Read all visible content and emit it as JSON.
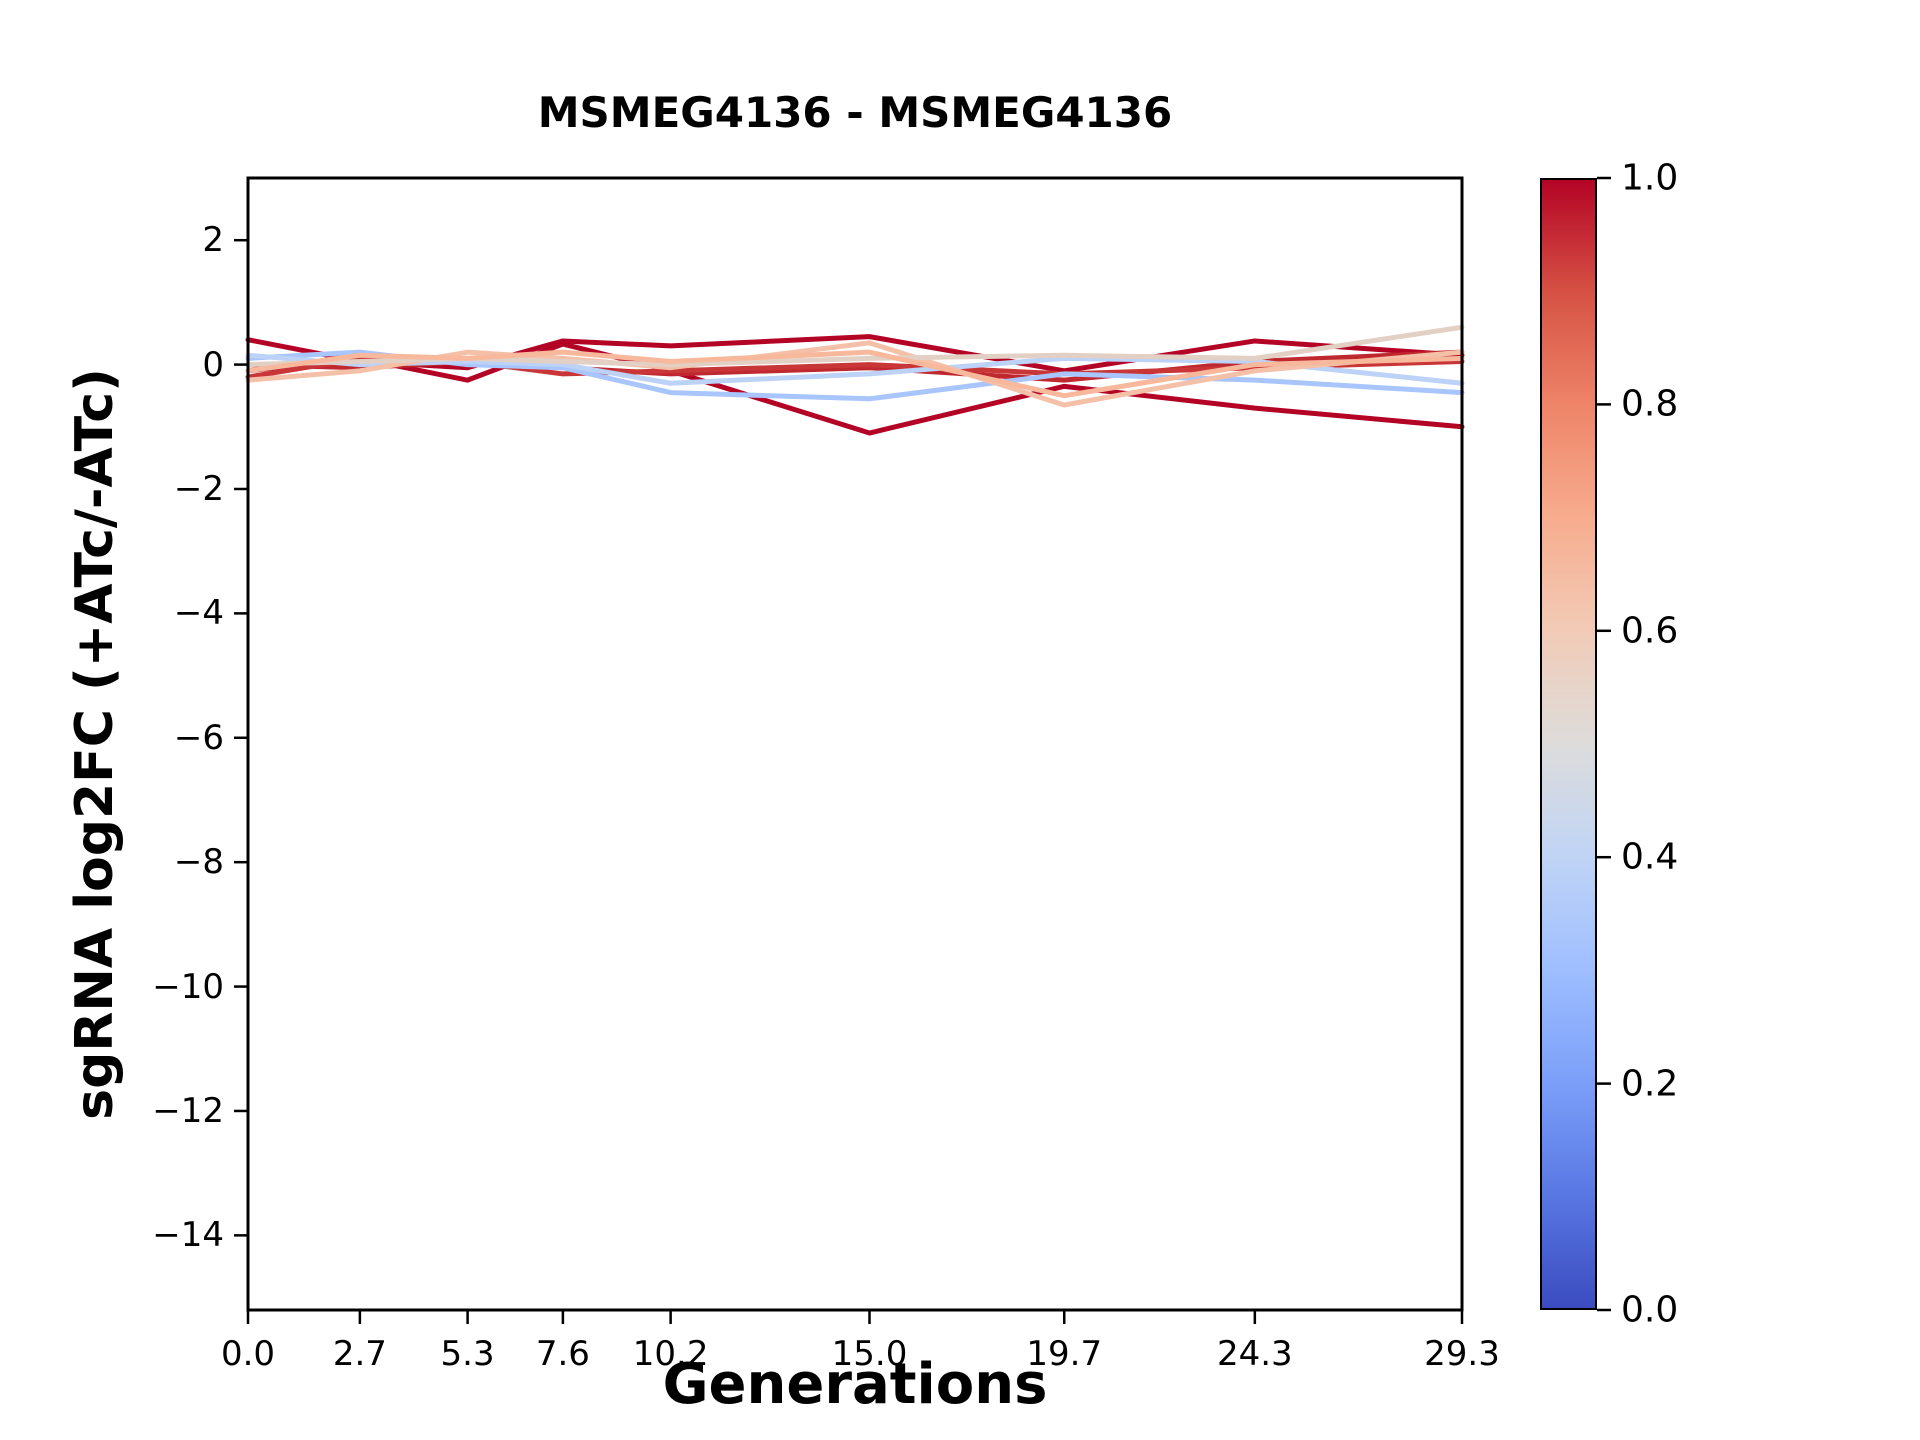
{
  "title": "MSMEG4136 - MSMEG4136",
  "xlabel": "Generations",
  "ylabel": "sgRNA log2FC (+ATc/-ATc)",
  "chart_data": {
    "type": "line",
    "title": "MSMEG4136 - MSMEG4136",
    "xlabel": "Generations",
    "ylabel": "sgRNA log2FC (+ATc/-ATc)",
    "grid": false,
    "legend": "none",
    "x": [
      0.0,
      2.7,
      5.3,
      7.6,
      10.2,
      15.0,
      19.7,
      24.3,
      29.3
    ],
    "xlim": [
      0.0,
      29.3
    ],
    "ylim": [
      -15.2,
      3.0
    ],
    "x_ticks": [
      "0.0",
      "2.7",
      "5.3",
      "7.6",
      "10.2",
      "15.0",
      "19.7",
      "24.3",
      "29.3"
    ],
    "x_tick_values": [
      0.0,
      2.7,
      5.3,
      7.6,
      10.2,
      15.0,
      19.7,
      24.3,
      29.3
    ],
    "y_ticks": [
      "2",
      "0",
      "−2",
      "−4",
      "−6",
      "−8",
      "−10",
      "−12",
      "−14"
    ],
    "y_tick_values": [
      2,
      0,
      -2,
      -4,
      -6,
      -8,
      -10,
      -12,
      -14
    ],
    "series": [
      {
        "name": "line_1",
        "color": "#b40426",
        "colormap_value": 1.0,
        "values": [
          0.4,
          0.05,
          -0.05,
          0.38,
          0.3,
          0.45,
          -0.1,
          0.38,
          0.15
        ]
      },
      {
        "name": "line_2",
        "color": "#b40426",
        "colormap_value": 1.0,
        "values": [
          -0.1,
          0.1,
          -0.25,
          0.33,
          -0.1,
          -1.1,
          -0.35,
          -0.7,
          -1.0
        ]
      },
      {
        "name": "line_3",
        "color": "#c0282f",
        "colormap_value": 0.95,
        "values": [
          0.0,
          -0.05,
          0.05,
          -0.05,
          -0.15,
          -0.05,
          -0.25,
          0.05,
          0.2
        ]
      },
      {
        "name": "line_4",
        "color": "#c93637",
        "colormap_value": 0.9,
        "values": [
          -0.2,
          0.1,
          0.05,
          -0.15,
          -0.1,
          0.0,
          -0.15,
          -0.05,
          0.05
        ]
      },
      {
        "name": "line_5",
        "color": "#a8c5fd",
        "colormap_value": 0.4,
        "values": [
          0.1,
          0.2,
          0.0,
          -0.05,
          -0.45,
          -0.55,
          -0.15,
          -0.25,
          -0.45
        ]
      },
      {
        "name": "line_6",
        "color": "#bcd2f7",
        "colormap_value": 0.45,
        "values": [
          0.15,
          0.0,
          0.05,
          0.0,
          -0.3,
          -0.15,
          0.1,
          0.05,
          -0.3
        ]
      },
      {
        "name": "line_7",
        "color": "#f5c0a8",
        "colormap_value": 0.65,
        "values": [
          -0.25,
          -0.1,
          0.2,
          0.1,
          -0.05,
          0.35,
          -0.65,
          -0.1,
          0.2
        ]
      },
      {
        "name": "line_8",
        "color": "#e3d0c5",
        "colormap_value": 0.55,
        "values": [
          0.0,
          0.05,
          0.1,
          0.05,
          0.0,
          0.1,
          0.15,
          0.1,
          0.6
        ]
      },
      {
        "name": "line_9",
        "color": "#f7b89c",
        "colormap_value": 0.62,
        "values": [
          -0.1,
          0.15,
          0.1,
          0.2,
          0.05,
          0.2,
          -0.5,
          0.0,
          0.1
        ]
      }
    ],
    "colorbar": {
      "colormap": "coolwarm",
      "min": 0.0,
      "max": 1.0,
      "ticks": [
        "0.0",
        "0.2",
        "0.4",
        "0.6",
        "0.8",
        "1.0"
      ],
      "tick_values": [
        0.0,
        0.2,
        0.4,
        0.6,
        0.8,
        1.0
      ],
      "gradient_stops": [
        {
          "pos": 0.0,
          "color": "#3b4cc0"
        },
        {
          "pos": 0.1,
          "color": "#5977e3"
        },
        {
          "pos": 0.2,
          "color": "#7b9ff9"
        },
        {
          "pos": 0.3,
          "color": "#9ebeff"
        },
        {
          "pos": 0.4,
          "color": "#c0d4f5"
        },
        {
          "pos": 0.5,
          "color": "#dddcdb"
        },
        {
          "pos": 0.6,
          "color": "#f2cbb7"
        },
        {
          "pos": 0.7,
          "color": "#f7ac8e"
        },
        {
          "pos": 0.8,
          "color": "#ee8468"
        },
        {
          "pos": 0.9,
          "color": "#d65244"
        },
        {
          "pos": 1.0,
          "color": "#b40426"
        }
      ]
    }
  }
}
